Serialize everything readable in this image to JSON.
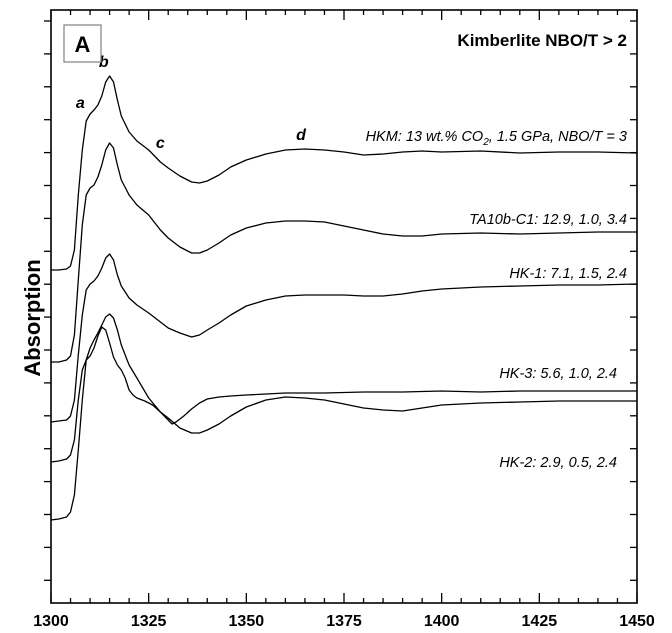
{
  "chart_data": {
    "type": "line",
    "panel_label": "A",
    "title": "Kimberlite NBO/T > 2",
    "ylabel": "Absorption",
    "xlabel": "",
    "xlim": [
      1300,
      1450
    ],
    "x_ticks": [
      1300,
      1325,
      1350,
      1375,
      1400,
      1425,
      1450
    ],
    "y_ticks_visible_labels": false,
    "grid": false,
    "legend": "none",
    "line_color": "#000000",
    "feature_labels": [
      {
        "text": "a",
        "x": 1307.5
      },
      {
        "text": "b",
        "x": 1313.5
      },
      {
        "text": "c",
        "x": 1328.0
      },
      {
        "text": "d",
        "x": 1364.0
      }
    ],
    "series": [
      {
        "name": "HKM",
        "label_prefix": "HKM: 13 wt.% CO",
        "label_subscript": "2",
        "label_suffix": ", 1.5 GPa, NBO/T = 3",
        "x": [
          1300,
          1302,
          1304,
          1305,
          1306,
          1307,
          1308,
          1309,
          1310,
          1311,
          1312,
          1313,
          1314,
          1315,
          1316,
          1317,
          1318,
          1320,
          1322,
          1325,
          1328,
          1330,
          1333,
          1336,
          1338,
          1340,
          1343,
          1346,
          1350,
          1355,
          1360,
          1365,
          1370,
          1375,
          1380,
          1385,
          1390,
          1395,
          1400,
          1410,
          1420,
          1430,
          1440,
          1450
        ],
        "y": [
          270,
          270,
          269,
          266,
          250,
          195,
          150,
          121,
          114,
          110,
          105,
          96,
          82,
          76,
          82,
          100,
          116,
          132,
          141,
          150,
          162,
          168,
          176,
          182,
          183,
          181,
          175,
          167,
          160,
          154,
          150,
          149,
          150,
          152,
          155,
          154,
          152,
          151,
          152,
          151,
          153,
          152,
          152,
          153
        ]
      },
      {
        "name": "TA10b-C1",
        "label": "TA10b-C1: 12.9, 1.0, 3.4",
        "x": [
          1300,
          1302,
          1304,
          1305,
          1306,
          1307,
          1308,
          1309,
          1310,
          1311,
          1312,
          1313,
          1314,
          1315,
          1316,
          1317,
          1318,
          1320,
          1322,
          1325,
          1328,
          1330,
          1333,
          1336,
          1338,
          1340,
          1343,
          1346,
          1350,
          1355,
          1360,
          1365,
          1370,
          1375,
          1380,
          1385,
          1390,
          1395,
          1400,
          1410,
          1420,
          1430,
          1440,
          1450
        ],
        "y": [
          362,
          362,
          360,
          356,
          335,
          280,
          225,
          195,
          188,
          185,
          177,
          165,
          150,
          143,
          148,
          165,
          180,
          195,
          205,
          215,
          230,
          238,
          247,
          253,
          253,
          250,
          243,
          235,
          228,
          223,
          221,
          221,
          222,
          226,
          230,
          234,
          236,
          236,
          234,
          233,
          234,
          233,
          232,
          232
        ]
      },
      {
        "name": "HK-1",
        "label": "HK-1: 7.1, 1.5, 2.4",
        "x": [
          1300,
          1302,
          1304,
          1305,
          1306,
          1307,
          1308,
          1309,
          1310,
          1311,
          1312,
          1313,
          1314,
          1315,
          1316,
          1317,
          1318,
          1320,
          1322,
          1325,
          1328,
          1330,
          1333,
          1336,
          1338,
          1340,
          1343,
          1346,
          1350,
          1355,
          1360,
          1365,
          1370,
          1375,
          1380,
          1385,
          1390,
          1395,
          1400,
          1410,
          1420,
          1430,
          1440,
          1450
        ],
        "y": [
          422,
          421,
          420,
          416,
          400,
          355,
          315,
          290,
          284,
          281,
          276,
          268,
          258,
          254,
          260,
          275,
          286,
          298,
          305,
          313,
          322,
          328,
          333,
          337,
          335,
          330,
          323,
          315,
          306,
          300,
          296,
          295,
          295,
          295,
          296,
          296,
          294,
          291,
          289,
          287,
          286,
          285,
          285,
          284
        ]
      },
      {
        "name": "HK-3",
        "label": "HK-3: 5.6, 1.0, 2.4",
        "x": [
          1300,
          1302,
          1304,
          1305,
          1306,
          1307,
          1308,
          1309,
          1310,
          1311,
          1312,
          1313,
          1314,
          1315,
          1316,
          1317,
          1318,
          1319,
          1320,
          1321,
          1322,
          1324,
          1326,
          1328,
          1330,
          1331,
          1332,
          1334,
          1336,
          1338,
          1340,
          1343,
          1346,
          1350,
          1355,
          1360,
          1370,
          1380,
          1390,
          1400,
          1410,
          1420,
          1430,
          1440,
          1450
        ],
        "y": [
          462,
          461,
          459,
          455,
          440,
          400,
          370,
          360,
          356,
          348,
          336,
          327,
          330,
          343,
          357,
          365,
          370,
          378,
          390,
          395,
          398,
          401,
          405,
          412,
          420,
          424,
          422,
          416,
          409,
          403,
          399,
          397,
          396,
          395,
          394,
          393,
          393,
          392,
          392,
          391,
          392,
          391,
          391,
          391,
          391
        ]
      },
      {
        "name": "HK-2",
        "label": "HK-2: 2.9, 0.5, 2.4",
        "x": [
          1300,
          1302,
          1304,
          1305,
          1306,
          1307,
          1308,
          1309,
          1310,
          1311,
          1312,
          1313,
          1314,
          1315,
          1316,
          1317,
          1318,
          1320,
          1322,
          1325,
          1328,
          1330,
          1333,
          1336,
          1338,
          1340,
          1343,
          1346,
          1350,
          1355,
          1360,
          1365,
          1370,
          1375,
          1380,
          1385,
          1390,
          1395,
          1400,
          1410,
          1420,
          1430,
          1440,
          1450
        ],
        "y": [
          520,
          519,
          517,
          512,
          495,
          450,
          400,
          360,
          348,
          340,
          333,
          325,
          317,
          314,
          318,
          330,
          345,
          365,
          378,
          398,
          412,
          418,
          428,
          433,
          433,
          430,
          424,
          416,
          407,
          400,
          397,
          398,
          400,
          404,
          408,
          410,
          411,
          408,
          405,
          403,
          402,
          401,
          401,
          401
        ]
      }
    ]
  }
}
